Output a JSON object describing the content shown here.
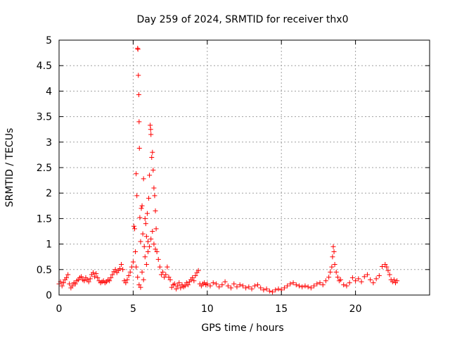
{
  "chart_data": {
    "type": "scatter",
    "title": "Day 259 of 2024, SRMTID for receiver thx0",
    "xlabel": "GPS time / hours",
    "ylabel": "SRMTID / TECUs",
    "xlim": [
      0,
      25
    ],
    "ylim": [
      0,
      5
    ],
    "xticks": [
      0,
      5,
      10,
      15,
      20
    ],
    "xtick_labels": [
      "0",
      "5",
      "10",
      "15",
      "20"
    ],
    "yticks": [
      0,
      0.5,
      1,
      1.5,
      2,
      2.5,
      3,
      3.5,
      4,
      4.5,
      5
    ],
    "ytick_labels": [
      "0",
      "0.5",
      "1",
      "1.5",
      "2",
      "2.5",
      "3",
      "3.5",
      "4",
      "4.5",
      "5"
    ],
    "grid": true,
    "marker": "+",
    "color": "#ff0000",
    "series": [
      {
        "name": "SRMTID",
        "points": [
          [
            0.0,
            0.22
          ],
          [
            0.1,
            0.26
          ],
          [
            0.2,
            0.18
          ],
          [
            0.3,
            0.24
          ],
          [
            0.4,
            0.3
          ],
          [
            0.5,
            0.34
          ],
          [
            0.6,
            0.4
          ],
          [
            0.7,
            0.22
          ],
          [
            0.8,
            0.14
          ],
          [
            0.9,
            0.18
          ],
          [
            1.0,
            0.24
          ],
          [
            1.1,
            0.22
          ],
          [
            1.2,
            0.28
          ],
          [
            1.3,
            0.3
          ],
          [
            1.4,
            0.34
          ],
          [
            1.5,
            0.36
          ],
          [
            1.6,
            0.3
          ],
          [
            1.7,
            0.28
          ],
          [
            1.8,
            0.34
          ],
          [
            1.9,
            0.3
          ],
          [
            2.0,
            0.26
          ],
          [
            2.1,
            0.32
          ],
          [
            2.2,
            0.4
          ],
          [
            2.3,
            0.44
          ],
          [
            2.4,
            0.36
          ],
          [
            2.5,
            0.42
          ],
          [
            2.6,
            0.34
          ],
          [
            2.7,
            0.28
          ],
          [
            2.8,
            0.24
          ],
          [
            2.9,
            0.26
          ],
          [
            3.0,
            0.28
          ],
          [
            3.1,
            0.24
          ],
          [
            3.2,
            0.26
          ],
          [
            3.3,
            0.3
          ],
          [
            3.4,
            0.28
          ],
          [
            3.5,
            0.34
          ],
          [
            3.6,
            0.4
          ],
          [
            3.7,
            0.46
          ],
          [
            3.8,
            0.5
          ],
          [
            3.9,
            0.44
          ],
          [
            4.0,
            0.48
          ],
          [
            4.1,
            0.52
          ],
          [
            4.2,
            0.6
          ],
          [
            4.3,
            0.5
          ],
          [
            4.4,
            0.28
          ],
          [
            4.5,
            0.24
          ],
          [
            4.6,
            0.3
          ],
          [
            4.7,
            0.38
          ],
          [
            4.8,
            0.45
          ],
          [
            4.9,
            0.55
          ],
          [
            5.0,
            0.65
          ],
          [
            5.05,
            1.35
          ],
          [
            5.1,
            1.3
          ],
          [
            5.15,
            0.85
          ],
          [
            5.2,
            2.38
          ],
          [
            5.25,
            1.95
          ],
          [
            5.3,
            4.84
          ],
          [
            5.32,
            4.82
          ],
          [
            5.35,
            4.31
          ],
          [
            5.38,
            3.93
          ],
          [
            5.4,
            3.4
          ],
          [
            5.42,
            2.88
          ],
          [
            5.45,
            1.52
          ],
          [
            5.5,
            1.05
          ],
          [
            5.55,
            1.7
          ],
          [
            5.6,
            1.75
          ],
          [
            5.65,
            1.2
          ],
          [
            5.7,
            2.28
          ],
          [
            5.75,
            0.95
          ],
          [
            5.8,
            1.5
          ],
          [
            5.85,
            1.4
          ],
          [
            5.9,
            1.15
          ],
          [
            5.95,
            1.6
          ],
          [
            6.0,
            1.05
          ],
          [
            6.05,
            1.9
          ],
          [
            6.1,
            2.35
          ],
          [
            6.15,
            3.33
          ],
          [
            6.18,
            3.25
          ],
          [
            6.2,
            3.15
          ],
          [
            6.25,
            2.7
          ],
          [
            6.3,
            2.8
          ],
          [
            6.35,
            2.45
          ],
          [
            6.4,
            2.1
          ],
          [
            6.45,
            1.95
          ],
          [
            6.5,
            1.65
          ],
          [
            6.55,
            1.3
          ],
          [
            6.6,
            0.85
          ],
          [
            6.7,
            0.7
          ],
          [
            6.8,
            0.55
          ],
          [
            6.9,
            0.4
          ],
          [
            5.2,
            0.55
          ],
          [
            5.3,
            0.35
          ],
          [
            5.4,
            0.2
          ],
          [
            5.5,
            0.15
          ],
          [
            5.6,
            0.45
          ],
          [
            5.7,
            0.3
          ],
          [
            5.8,
            0.75
          ],
          [
            5.9,
            0.6
          ],
          [
            6.0,
            0.85
          ],
          [
            6.1,
            0.95
          ],
          [
            6.2,
            1.1
          ],
          [
            6.3,
            1.25
          ],
          [
            6.4,
            1.0
          ],
          [
            6.5,
            0.9
          ],
          [
            7.0,
            0.45
          ],
          [
            7.1,
            0.35
          ],
          [
            7.2,
            0.4
          ],
          [
            7.3,
            0.55
          ],
          [
            7.4,
            0.35
          ],
          [
            7.5,
            0.3
          ],
          [
            7.6,
            0.15
          ],
          [
            7.7,
            0.2
          ],
          [
            7.8,
            0.22
          ],
          [
            7.9,
            0.12
          ],
          [
            8.0,
            0.18
          ],
          [
            8.1,
            0.24
          ],
          [
            8.2,
            0.14
          ],
          [
            8.3,
            0.2
          ],
          [
            8.4,
            0.16
          ],
          [
            8.5,
            0.18
          ],
          [
            8.6,
            0.24
          ],
          [
            8.7,
            0.2
          ],
          [
            8.8,
            0.26
          ],
          [
            8.9,
            0.3
          ],
          [
            9.0,
            0.34
          ],
          [
            9.1,
            0.28
          ],
          [
            9.2,
            0.38
          ],
          [
            9.3,
            0.44
          ],
          [
            9.4,
            0.48
          ],
          [
            9.5,
            0.22
          ],
          [
            9.6,
            0.18
          ],
          [
            9.7,
            0.22
          ],
          [
            9.8,
            0.24
          ],
          [
            9.9,
            0.2
          ],
          [
            10.0,
            0.22
          ],
          [
            10.2,
            0.18
          ],
          [
            10.4,
            0.24
          ],
          [
            10.6,
            0.22
          ],
          [
            10.8,
            0.16
          ],
          [
            11.0,
            0.2
          ],
          [
            11.2,
            0.26
          ],
          [
            11.4,
            0.18
          ],
          [
            11.6,
            0.14
          ],
          [
            11.8,
            0.22
          ],
          [
            12.0,
            0.16
          ],
          [
            12.2,
            0.2
          ],
          [
            12.4,
            0.18
          ],
          [
            12.6,
            0.14
          ],
          [
            12.8,
            0.16
          ],
          [
            13.0,
            0.12
          ],
          [
            13.2,
            0.18
          ],
          [
            13.4,
            0.2
          ],
          [
            13.6,
            0.14
          ],
          [
            13.8,
            0.1
          ],
          [
            14.0,
            0.12
          ],
          [
            14.2,
            0.08
          ],
          [
            14.4,
            0.06
          ],
          [
            14.6,
            0.1
          ],
          [
            14.8,
            0.12
          ],
          [
            15.0,
            0.1
          ],
          [
            15.2,
            0.14
          ],
          [
            15.4,
            0.18
          ],
          [
            15.6,
            0.22
          ],
          [
            15.8,
            0.24
          ],
          [
            16.0,
            0.2
          ],
          [
            16.2,
            0.18
          ],
          [
            16.4,
            0.16
          ],
          [
            16.6,
            0.18
          ],
          [
            16.8,
            0.16
          ],
          [
            17.0,
            0.14
          ],
          [
            17.2,
            0.18
          ],
          [
            17.4,
            0.22
          ],
          [
            17.6,
            0.24
          ],
          [
            17.8,
            0.2
          ],
          [
            18.0,
            0.28
          ],
          [
            18.2,
            0.35
          ],
          [
            18.3,
            0.45
          ],
          [
            18.4,
            0.55
          ],
          [
            18.45,
            0.75
          ],
          [
            18.5,
            0.95
          ],
          [
            18.55,
            0.85
          ],
          [
            18.6,
            0.6
          ],
          [
            18.7,
            0.45
          ],
          [
            18.8,
            0.35
          ],
          [
            18.9,
            0.28
          ],
          [
            19.0,
            0.3
          ],
          [
            19.2,
            0.2
          ],
          [
            19.4,
            0.18
          ],
          [
            19.6,
            0.24
          ],
          [
            19.8,
            0.34
          ],
          [
            20.0,
            0.28
          ],
          [
            20.2,
            0.32
          ],
          [
            20.4,
            0.26
          ],
          [
            20.6,
            0.36
          ],
          [
            20.8,
            0.4
          ],
          [
            21.0,
            0.3
          ],
          [
            21.2,
            0.24
          ],
          [
            21.4,
            0.32
          ],
          [
            21.6,
            0.38
          ],
          [
            21.8,
            0.56
          ],
          [
            22.0,
            0.6
          ],
          [
            22.1,
            0.55
          ],
          [
            22.2,
            0.48
          ],
          [
            22.3,
            0.4
          ],
          [
            22.4,
            0.3
          ],
          [
            22.5,
            0.26
          ],
          [
            22.6,
            0.3
          ],
          [
            22.7,
            0.24
          ],
          [
            22.8,
            0.28
          ]
        ]
      }
    ]
  }
}
